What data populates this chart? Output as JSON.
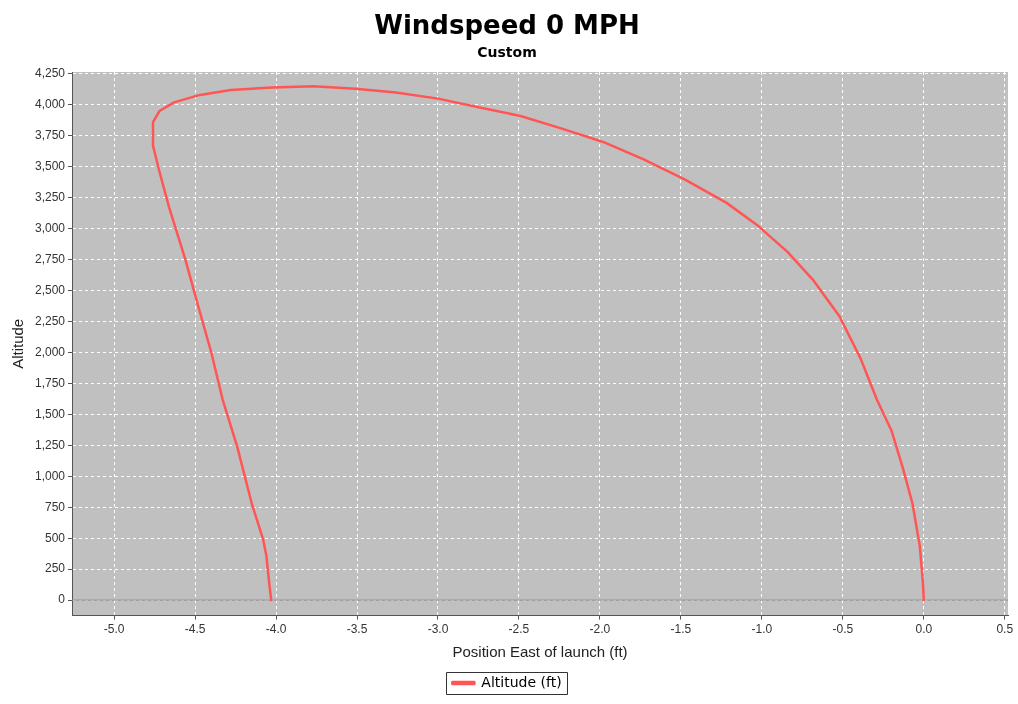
{
  "chart_data": {
    "type": "line",
    "title": "Windspeed 0 MPH",
    "subtitle": "Custom",
    "xlabel": "Position East of launch (ft)",
    "ylabel": "Altitude",
    "xlim": [
      -5.26,
      0.52
    ],
    "ylim": [
      -125,
      4265
    ],
    "xticks": [
      {
        "value": -5,
        "label": "-5.0"
      },
      {
        "value": -4.5,
        "label": "-4.5"
      },
      {
        "value": -4,
        "label": "-4.0"
      },
      {
        "value": -3.5,
        "label": "-3.5"
      },
      {
        "value": -3,
        "label": "-3.0"
      },
      {
        "value": -2.5,
        "label": "-2.5"
      },
      {
        "value": -2,
        "label": "-2.0"
      },
      {
        "value": -1.5,
        "label": "-1.5"
      },
      {
        "value": -1,
        "label": "-1.0"
      },
      {
        "value": -0.5,
        "label": "-0.5"
      },
      {
        "value": 0,
        "label": "0.0"
      },
      {
        "value": 0.5,
        "label": "0.5"
      }
    ],
    "yticks": [
      0,
      250,
      500,
      750,
      {
        "value": 1000,
        "label": "1,000"
      },
      {
        "value": 1250,
        "label": "1,250"
      },
      {
        "value": 1500,
        "label": "1,500"
      },
      {
        "value": 1750,
        "label": "1,750"
      },
      {
        "value": 2000,
        "label": "2,000"
      },
      {
        "value": 2250,
        "label": "2,250"
      },
      {
        "value": 2500,
        "label": "2,500"
      },
      {
        "value": 2750,
        "label": "2,750"
      },
      {
        "value": 3000,
        "label": "3,000"
      },
      {
        "value": 3250,
        "label": "3,250"
      },
      {
        "value": 3500,
        "label": "3,500"
      },
      {
        "value": 3750,
        "label": "3,750"
      },
      {
        "value": 4000,
        "label": "4,000"
      },
      {
        "value": 4250,
        "label": "4,250"
      }
    ],
    "grid": true,
    "legend": "bottom",
    "marker": "none",
    "line_style": "solid",
    "ref_lines": [
      {
        "axis": "y",
        "value": 0,
        "color": "#8c8c8c"
      }
    ],
    "series": [
      {
        "name": "Altitude (ft)",
        "color": "#ff5555",
        "x": [
          0,
          -0.006,
          -0.025,
          -0.07,
          -0.13,
          -0.2,
          -0.29,
          -0.39,
          -0.52,
          -0.68,
          -0.84,
          -1.03,
          -1.22,
          -1.48,
          -1.73,
          -1.98,
          -2.24,
          -2.49,
          -2.75,
          -3.0,
          -3.26,
          -3.51,
          -3.77,
          -4.02,
          -4.28,
          -4.47,
          -4.63,
          -4.72,
          -4.76,
          -4.76,
          -4.72,
          -4.66,
          -4.56,
          -4.48,
          -4.4,
          -4.33,
          -4.24,
          -4.15,
          -4.08,
          -4.06,
          -4.04,
          -4.03
        ],
        "values": [
          0,
          150,
          440,
          780,
          1070,
          1370,
          1620,
          1950,
          2290,
          2580,
          2810,
          3030,
          3210,
          3400,
          3560,
          3700,
          3810,
          3910,
          3980,
          4050,
          4100,
          4130,
          4150,
          4140,
          4120,
          4080,
          4020,
          3950,
          3860,
          3670,
          3460,
          3170,
          2750,
          2370,
          2000,
          1620,
          1240,
          780,
          490,
          360,
          110,
          0
        ]
      }
    ]
  }
}
